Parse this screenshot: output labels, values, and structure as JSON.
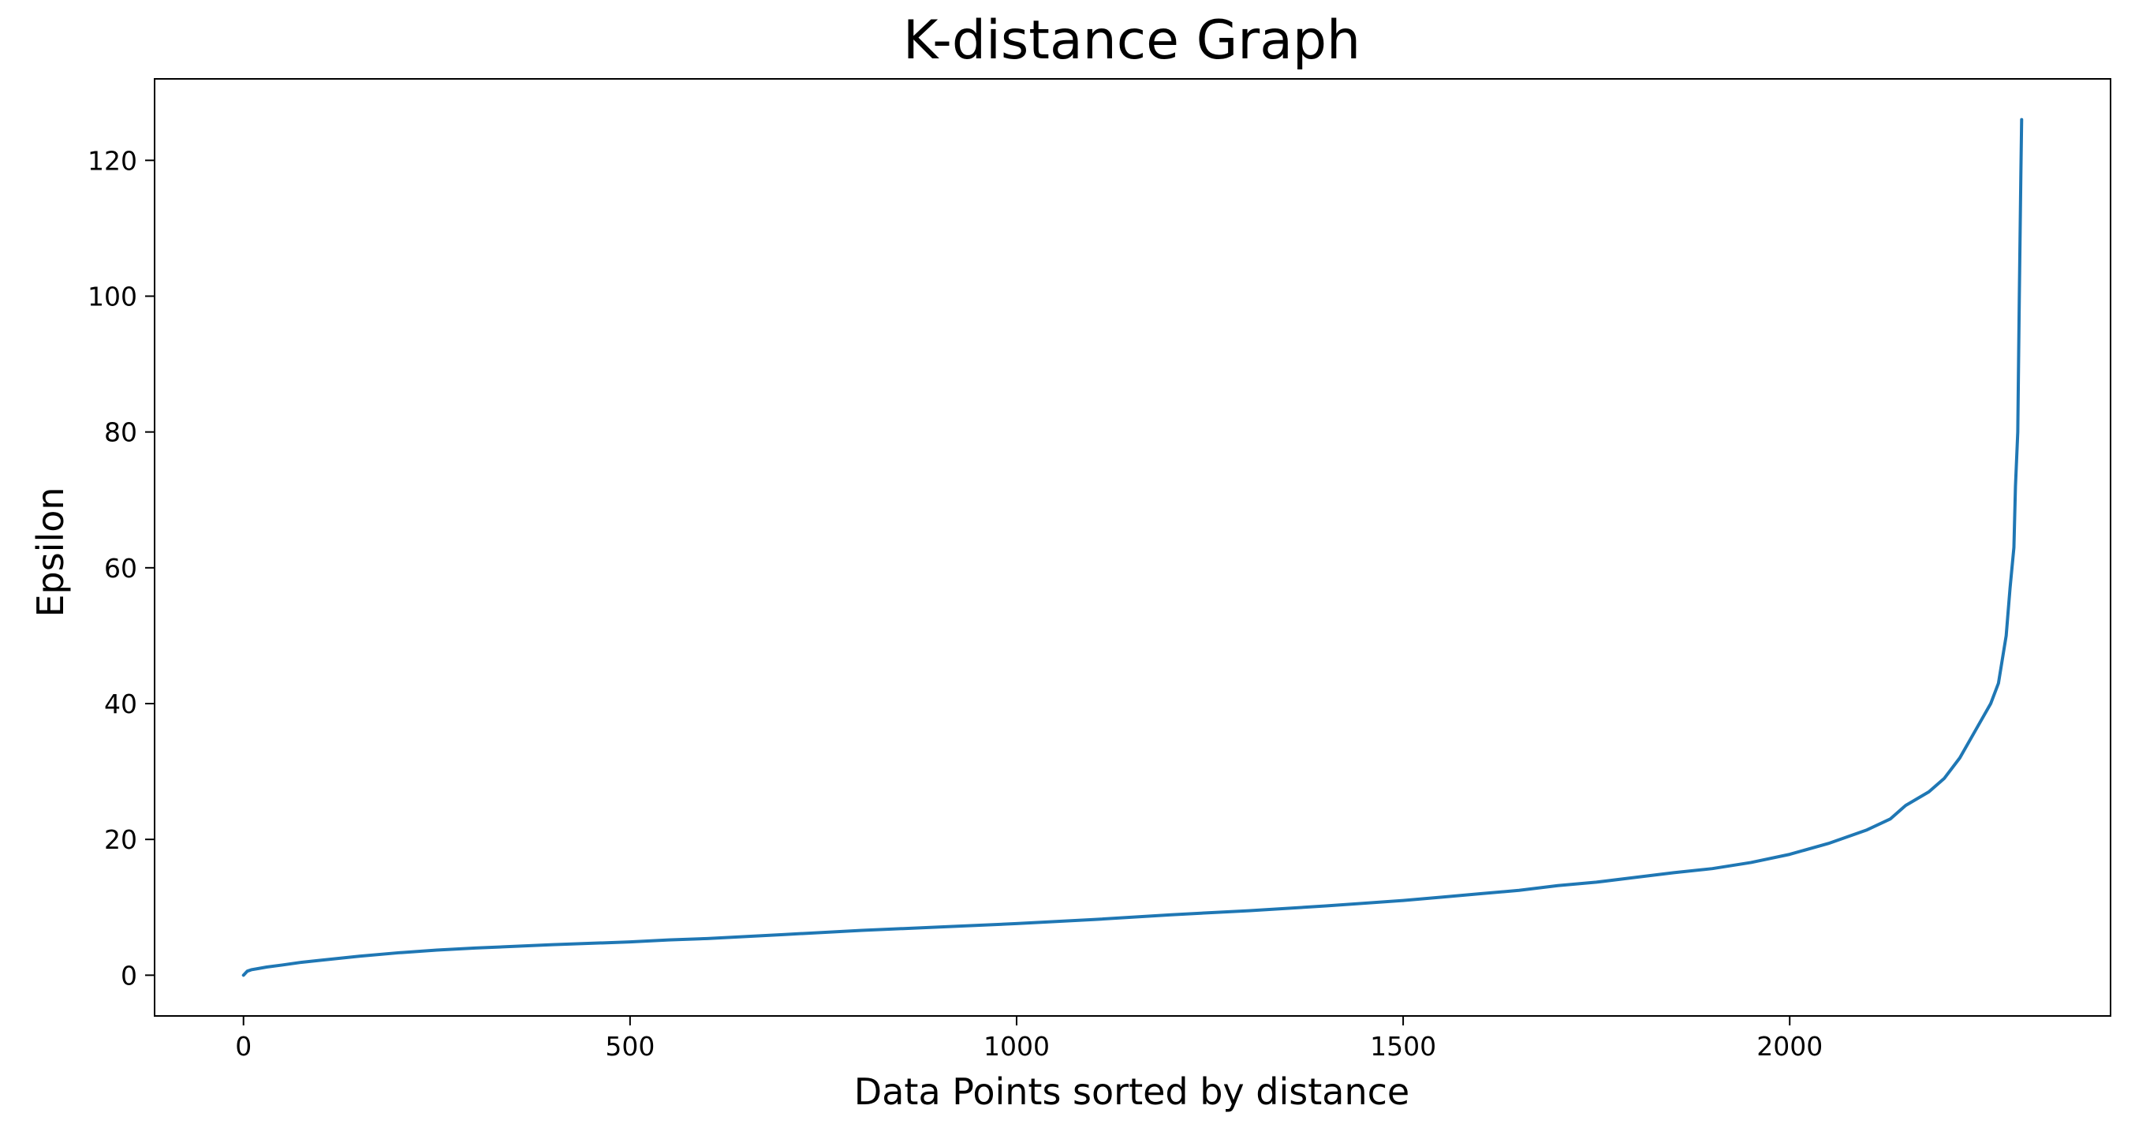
{
  "chart_data": {
    "type": "line",
    "title": "K-distance Graph",
    "xlabel": "Data Points sorted by distance",
    "ylabel": "Epsilon",
    "xlim": [
      -115,
      2415
    ],
    "ylim": [
      -6,
      132
    ],
    "xticks": [
      0,
      500,
      1000,
      1500,
      2000
    ],
    "yticks": [
      0,
      20,
      40,
      60,
      80,
      100,
      120
    ],
    "grid": false,
    "legend": "none",
    "series": [
      {
        "color": "#1f77b4",
        "x": [
          0,
          5,
          10,
          20,
          30,
          50,
          75,
          100,
          150,
          200,
          250,
          300,
          400,
          500,
          550,
          600,
          700,
          800,
          900,
          1000,
          1100,
          1200,
          1300,
          1400,
          1500,
          1550,
          1600,
          1650,
          1700,
          1750,
          1800,
          1850,
          1900,
          1950,
          2000,
          2050,
          2100,
          2130,
          2150,
          2180,
          2200,
          2220,
          2240,
          2260,
          2270,
          2280,
          2285,
          2290,
          2292,
          2295,
          2297,
          2299,
          2300
        ],
        "y": [
          0,
          0.6,
          0.8,
          1.0,
          1.2,
          1.5,
          1.9,
          2.2,
          2.8,
          3.3,
          3.7,
          4.0,
          4.5,
          4.9,
          5.2,
          5.4,
          6.0,
          6.6,
          7.1,
          7.6,
          8.2,
          8.9,
          9.5,
          10.2,
          11.0,
          11.5,
          12.0,
          12.5,
          13.2,
          13.7,
          14.4,
          15.1,
          15.7,
          16.6,
          17.8,
          19.4,
          21.4,
          23.0,
          25.0,
          27.0,
          29.0,
          32.0,
          36.0,
          40.0,
          43.0,
          50.0,
          57.0,
          63.0,
          72.0,
          80.0,
          100.0,
          118.0,
          126.0
        ]
      }
    ]
  }
}
